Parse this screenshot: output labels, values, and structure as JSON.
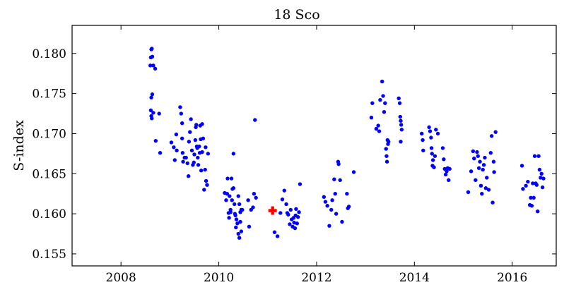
{
  "chart_data": {
    "type": "scatter",
    "title": "18 Sco",
    "xlabel": "",
    "ylabel": "S-index",
    "xlim": [
      2007.0,
      2016.9
    ],
    "ylim": [
      0.1535,
      0.1835
    ],
    "x_ticks": [
      2008,
      2010,
      2012,
      2014,
      2016
    ],
    "y_ticks": [
      0.155,
      0.16,
      0.165,
      0.17,
      0.175,
      0.18
    ],
    "x_tick_labels": [
      "2008",
      "2010",
      "2012",
      "2014",
      "2016"
    ],
    "y_tick_labels": [
      "0.155",
      "0.160",
      "0.165",
      "0.170",
      "0.175",
      "0.180"
    ],
    "grid": false,
    "legend": null,
    "colors": {
      "points": "#0000ff",
      "highlight": "#ff0000"
    },
    "series": [
      {
        "marker": "circle",
        "points": [
          [
            2008.62,
            0.1805
          ],
          [
            2008.63,
            0.1806
          ],
          [
            2008.61,
            0.1795
          ],
          [
            2008.64,
            0.1796
          ],
          [
            2008.6,
            0.1785
          ],
          [
            2008.66,
            0.1785
          ],
          [
            2008.7,
            0.1781
          ],
          [
            2008.62,
            0.1745
          ],
          [
            2008.64,
            0.1749
          ],
          [
            2008.61,
            0.1729
          ],
          [
            2008.62,
            0.1722
          ],
          [
            2008.66,
            0.1726
          ],
          [
            2008.63,
            0.1719
          ],
          [
            2008.78,
            0.1725
          ],
          [
            2008.71,
            0.1691
          ],
          [
            2008.8,
            0.1676
          ],
          [
            2009.03,
            0.1689
          ],
          [
            2009.08,
            0.1683
          ],
          [
            2009.1,
            0.1667
          ],
          [
            2009.13,
            0.1699
          ],
          [
            2009.14,
            0.1679
          ],
          [
            2009.21,
            0.1733
          ],
          [
            2009.23,
            0.1725
          ],
          [
            2009.25,
            0.1713
          ],
          [
            2009.25,
            0.1694
          ],
          [
            2009.26,
            0.1676
          ],
          [
            2009.27,
            0.1665
          ],
          [
            2009.3,
            0.167
          ],
          [
            2009.33,
            0.167
          ],
          [
            2009.36,
            0.1663
          ],
          [
            2009.38,
            0.1647
          ],
          [
            2009.39,
            0.169
          ],
          [
            2009.41,
            0.1702
          ],
          [
            2009.43,
            0.1718
          ],
          [
            2009.45,
            0.1679
          ],
          [
            2009.47,
            0.1661
          ],
          [
            2009.49,
            0.1664
          ],
          [
            2009.5,
            0.1674
          ],
          [
            2009.52,
            0.1692
          ],
          [
            2009.53,
            0.1708
          ],
          [
            2009.54,
            0.1711
          ],
          [
            2009.55,
            0.1684
          ],
          [
            2009.56,
            0.1682
          ],
          [
            2009.57,
            0.167
          ],
          [
            2009.58,
            0.1661
          ],
          [
            2009.6,
            0.1684
          ],
          [
            2009.61,
            0.1676
          ],
          [
            2009.62,
            0.171
          ],
          [
            2009.63,
            0.1693
          ],
          [
            2009.64,
            0.1654
          ],
          [
            2009.66,
            0.1712
          ],
          [
            2009.66,
            0.1677
          ],
          [
            2009.68,
            0.1694
          ],
          [
            2009.7,
            0.163
          ],
          [
            2009.72,
            0.1655
          ],
          [
            2009.73,
            0.1683
          ],
          [
            2009.74,
            0.1641
          ],
          [
            2009.76,
            0.1636
          ],
          [
            2009.78,
            0.1675
          ],
          [
            2010.12,
            0.1626
          ],
          [
            2010.15,
            0.1617
          ],
          [
            2010.17,
            0.1625
          ],
          [
            2010.18,
            0.1644
          ],
          [
            2010.2,
            0.1601
          ],
          [
            2010.21,
            0.1595
          ],
          [
            2010.22,
            0.1622
          ],
          [
            2010.24,
            0.1605
          ],
          [
            2010.24,
            0.1602
          ],
          [
            2010.26,
            0.1644
          ],
          [
            2010.27,
            0.1617
          ],
          [
            2010.28,
            0.1631
          ],
          [
            2010.3,
            0.1675
          ],
          [
            2010.3,
            0.1632
          ],
          [
            2010.32,
            0.1612
          ],
          [
            2010.33,
            0.16
          ],
          [
            2010.34,
            0.1598
          ],
          [
            2010.35,
            0.1583
          ],
          [
            2010.36,
            0.1593
          ],
          [
            2010.38,
            0.1588
          ],
          [
            2010.4,
            0.1575
          ],
          [
            2010.42,
            0.157
          ],
          [
            2010.44,
            0.1602
          ],
          [
            2010.46,
            0.1605
          ],
          [
            2010.48,
            0.1605
          ],
          [
            2010.4,
            0.1622
          ],
          [
            2010.42,
            0.1612
          ],
          [
            2010.44,
            0.159
          ],
          [
            2010.46,
            0.1578
          ],
          [
            2010.6,
            0.1617
          ],
          [
            2010.62,
            0.1584
          ],
          [
            2010.66,
            0.1605
          ],
          [
            2010.7,
            0.1608
          ],
          [
            2010.72,
            0.1625
          ],
          [
            2010.76,
            0.162
          ],
          [
            2010.74,
            0.1717
          ],
          [
            2011.14,
            0.1577
          ],
          [
            2011.2,
            0.1572
          ],
          [
            2011.26,
            0.1601
          ],
          [
            2011.3,
            0.1618
          ],
          [
            2011.34,
            0.1629
          ],
          [
            2011.38,
            0.1612
          ],
          [
            2011.4,
            0.1601
          ],
          [
            2011.42,
            0.1599
          ],
          [
            2011.45,
            0.1587
          ],
          [
            2011.47,
            0.1605
          ],
          [
            2011.49,
            0.1593
          ],
          [
            2011.51,
            0.1584
          ],
          [
            2011.53,
            0.1595
          ],
          [
            2011.54,
            0.1589
          ],
          [
            2011.56,
            0.1582
          ],
          [
            2011.57,
            0.1598
          ],
          [
            2011.58,
            0.1606
          ],
          [
            2011.6,
            0.1588
          ],
          [
            2011.62,
            0.1596
          ],
          [
            2011.64,
            0.1602
          ],
          [
            2011.66,
            0.1637
          ],
          [
            2012.15,
            0.1621
          ],
          [
            2012.18,
            0.1615
          ],
          [
            2012.22,
            0.161
          ],
          [
            2012.26,
            0.1585
          ],
          [
            2012.3,
            0.1605
          ],
          [
            2012.32,
            0.1617
          ],
          [
            2012.36,
            0.1643
          ],
          [
            2012.38,
            0.1625
          ],
          [
            2012.4,
            0.16
          ],
          [
            2012.44,
            0.1665
          ],
          [
            2012.45,
            0.1662
          ],
          [
            2012.48,
            0.1642
          ],
          [
            2012.52,
            0.159
          ],
          [
            2012.62,
            0.1625
          ],
          [
            2012.64,
            0.1607
          ],
          [
            2012.66,
            0.1609
          ],
          [
            2012.76,
            0.1652
          ],
          [
            2013.12,
            0.172
          ],
          [
            2013.14,
            0.1738
          ],
          [
            2013.22,
            0.1706
          ],
          [
            2013.26,
            0.171
          ],
          [
            2013.28,
            0.1703
          ],
          [
            2013.3,
            0.1742
          ],
          [
            2013.34,
            0.1765
          ],
          [
            2013.36,
            0.1747
          ],
          [
            2013.38,
            0.1727
          ],
          [
            2013.4,
            0.1738
          ],
          [
            2013.42,
            0.1681
          ],
          [
            2013.43,
            0.1672
          ],
          [
            2013.44,
            0.1665
          ],
          [
            2013.45,
            0.1692
          ],
          [
            2013.46,
            0.1687
          ],
          [
            2013.47,
            0.169
          ],
          [
            2013.68,
            0.1744
          ],
          [
            2013.7,
            0.1738
          ],
          [
            2013.71,
            0.1721
          ],
          [
            2013.72,
            0.1716
          ],
          [
            2013.73,
            0.1711
          ],
          [
            2013.74,
            0.1705
          ],
          [
            2013.72,
            0.169
          ],
          [
            2014.15,
            0.17
          ],
          [
            2014.17,
            0.1692
          ],
          [
            2014.18,
            0.1679
          ],
          [
            2014.3,
            0.1708
          ],
          [
            2014.32,
            0.1703
          ],
          [
            2014.34,
            0.1695
          ],
          [
            2014.35,
            0.1682
          ],
          [
            2014.36,
            0.1675
          ],
          [
            2014.37,
            0.166
          ],
          [
            2014.38,
            0.1667
          ],
          [
            2014.4,
            0.1658
          ],
          [
            2014.42,
            0.1672
          ],
          [
            2014.44,
            0.1705
          ],
          [
            2014.48,
            0.17
          ],
          [
            2014.58,
            0.1682
          ],
          [
            2014.6,
            0.1668
          ],
          [
            2014.62,
            0.1656
          ],
          [
            2014.64,
            0.1649
          ],
          [
            2014.66,
            0.1653
          ],
          [
            2014.68,
            0.1657
          ],
          [
            2014.7,
            0.1642
          ],
          [
            2014.72,
            0.1656
          ],
          [
            2015.1,
            0.1627
          ],
          [
            2015.16,
            0.1653
          ],
          [
            2015.2,
            0.1678
          ],
          [
            2015.22,
            0.1669
          ],
          [
            2015.25,
            0.1642
          ],
          [
            2015.28,
            0.1677
          ],
          [
            2015.3,
            0.1672
          ],
          [
            2015.32,
            0.1657
          ],
          [
            2015.34,
            0.1665
          ],
          [
            2015.36,
            0.1635
          ],
          [
            2015.38,
            0.1625
          ],
          [
            2015.4,
            0.1655
          ],
          [
            2015.42,
            0.1661
          ],
          [
            2015.44,
            0.167
          ],
          [
            2015.46,
            0.1632
          ],
          [
            2015.48,
            0.1645
          ],
          [
            2015.52,
            0.163
          ],
          [
            2015.56,
            0.1676
          ],
          [
            2015.58,
            0.1697
          ],
          [
            2015.6,
            0.1614
          ],
          [
            2015.62,
            0.1665
          ],
          [
            2015.63,
            0.1652
          ],
          [
            2015.66,
            0.1702
          ],
          [
            2016.2,
            0.166
          ],
          [
            2016.22,
            0.1631
          ],
          [
            2016.28,
            0.1635
          ],
          [
            2016.32,
            0.164
          ],
          [
            2016.36,
            0.1611
          ],
          [
            2016.38,
            0.162
          ],
          [
            2016.4,
            0.161
          ],
          [
            2016.42,
            0.1638
          ],
          [
            2016.44,
            0.162
          ],
          [
            2016.46,
            0.1672
          ],
          [
            2016.48,
            0.1638
          ],
          [
            2016.5,
            0.1636
          ],
          [
            2016.52,
            0.1603
          ],
          [
            2016.54,
            0.1672
          ],
          [
            2016.56,
            0.1655
          ],
          [
            2016.58,
            0.1645
          ],
          [
            2016.6,
            0.165
          ],
          [
            2016.62,
            0.1633
          ],
          [
            2016.64,
            0.1644
          ]
        ]
      },
      {
        "marker": "plus",
        "points": [
          [
            2011.1,
            0.1604
          ]
        ]
      }
    ]
  }
}
